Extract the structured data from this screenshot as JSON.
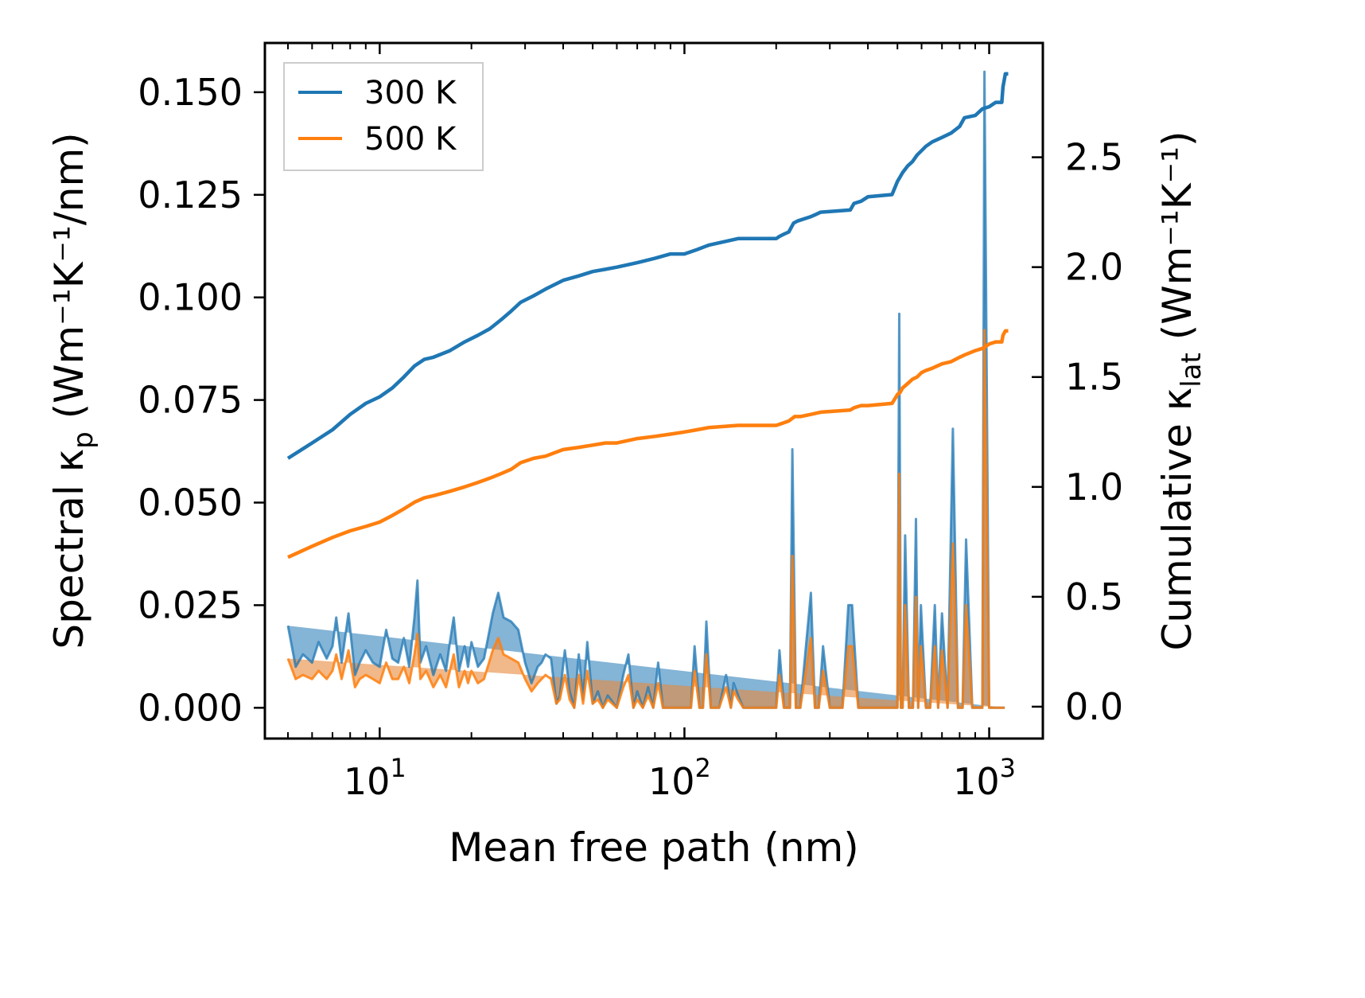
{
  "chart_data": {
    "type": "line",
    "xlabel": "Mean free path (nm)",
    "xscale": "log",
    "xlim": [
      4.2,
      1500
    ],
    "x_ticks": [
      {
        "value": 10,
        "base": "10",
        "exp": "1"
      },
      {
        "value": 100,
        "base": "10",
        "exp": "2"
      },
      {
        "value": 1000,
        "base": "10",
        "exp": "3"
      }
    ],
    "y_left": {
      "label_main": "Spectral κ",
      "label_sub": "p",
      "label_unit": " (Wm⁻¹K⁻¹/nm)",
      "lim": [
        -0.0075,
        0.162
      ],
      "ticks": [
        "0.000",
        "0.025",
        "0.050",
        "0.075",
        "0.100",
        "0.125",
        "0.150"
      ]
    },
    "y_right": {
      "label_main": "Cumulative κ",
      "label_sub": "lat",
      "label_unit": " (Wm⁻¹K⁻¹)",
      "lim": [
        -0.145,
        3.02
      ],
      "ticks": [
        "0.0",
        "0.5",
        "1.0",
        "1.5",
        "2.0",
        "2.5"
      ]
    },
    "legend": {
      "position": "top-left",
      "entries": [
        "300 K",
        "500 K"
      ]
    },
    "colors": {
      "s300": "#1f77b4",
      "s500": "#ff7f0e",
      "fill300": "#1f77b4",
      "fill500": "#e8893b"
    },
    "spectral": {
      "x": [
        5.0,
        5.3,
        5.6,
        6.0,
        6.3,
        6.7,
        7.0,
        7.2,
        7.5,
        7.9,
        8.3,
        8.6,
        9.0,
        9.5,
        10.0,
        10.5,
        11.0,
        11.5,
        12.0,
        12.5,
        13.0,
        13.3,
        13.6,
        14.2,
        15.0,
        15.8,
        16.5,
        17.0,
        17.5,
        18.2,
        19.0,
        19.5,
        20.0,
        21.0,
        22.0,
        23.5,
        24.5,
        25.5,
        27.0,
        28.5,
        30.0,
        31.5,
        33.0,
        34.0,
        35.0,
        36.5,
        38.0,
        39.0,
        40.5,
        42.0,
        43.5,
        45.0,
        46.5,
        48.0,
        50.0,
        52.0,
        54.0,
        56.0,
        60.0,
        63.0,
        65.5,
        68.0,
        70.0,
        73.0,
        76.0,
        79.0,
        82.0,
        85.0,
        89.0,
        95.0,
        105.0,
        108.0,
        112.0,
        115.0,
        118.0,
        122.0,
        130.0,
        137.0,
        142.0,
        145.0,
        150.0,
        156.0,
        160.0,
        170.0,
        200.0,
        205.0,
        212.0,
        218.0,
        222.0,
        226.0,
        232.0,
        240.0,
        260.0,
        268.0,
        276.0,
        285.0,
        300.0,
        330.0,
        345.0,
        355.0,
        372.0,
        385.0,
        397.0,
        450.0,
        500.0,
        507.0,
        513.0,
        520.0,
        530.0,
        545.0,
        562.0,
        575.0,
        585.0,
        597.0,
        620.0,
        640.0,
        663.0,
        680.0,
        700.0,
        730.0,
        760.0,
        790.0,
        805.0,
        818.0,
        840.0,
        880.0,
        920.0,
        935.0,
        950.0,
        965.0,
        1000.0,
        1090.0,
        1100.0,
        1110.0,
        1125.0,
        1140.0,
        1155.0
      ],
      "y300": [
        0.02,
        0.01,
        0.013,
        0.011,
        0.016,
        0.012,
        0.015,
        0.022,
        0.011,
        0.023,
        0.008,
        0.011,
        0.014,
        0.011,
        0.01,
        0.019,
        0.012,
        0.011,
        0.017,
        0.01,
        0.022,
        0.031,
        0.011,
        0.015,
        0.008,
        0.013,
        0.009,
        0.016,
        0.022,
        0.009,
        0.015,
        0.01,
        0.016,
        0.01,
        0.012,
        0.023,
        0.028,
        0.022,
        0.021,
        0.019,
        0.011,
        0.006,
        0.01,
        0.011,
        0.013,
        0.012,
        0.001,
        0.003,
        0.014,
        0.004,
        0.0,
        0.013,
        0.002,
        0.016,
        0.001,
        0.004,
        0.0,
        0.003,
        0.0,
        0.008,
        0.013,
        0.0,
        0.004,
        0.0,
        0.005,
        0.0,
        0.011,
        0.0,
        0.0,
        0.0,
        0.0,
        0.015,
        0.0,
        0.0,
        0.021,
        0.0,
        0.0,
        0.008,
        0.0,
        0.006,
        0.003,
        0.0,
        0.0,
        0.0,
        0.0,
        0.014,
        0.0,
        0.0,
        0.0,
        0.063,
        0.0,
        0.0,
        0.028,
        0.0,
        0.0,
        0.015,
        0.0,
        0.0,
        0.025,
        0.025,
        0.0,
        0.0,
        0.0,
        0.0,
        0.0,
        0.096,
        0.0,
        0.0,
        0.042,
        0.0,
        0.0,
        0.046,
        0.0,
        0.025,
        0.0,
        0.0,
        0.025,
        0.0,
        0.023,
        0.0,
        0.068,
        0.0,
        0.0,
        0.0,
        0.041,
        0.0,
        0.0,
        0.0,
        0.0,
        0.155,
        0.0,
        0.0,
        0.0,
        0.0,
        0.0
      ],
      "y500": [
        0.012,
        0.007,
        0.008,
        0.007,
        0.009,
        0.007,
        0.009,
        0.013,
        0.007,
        0.014,
        0.005,
        0.007,
        0.008,
        0.007,
        0.006,
        0.011,
        0.007,
        0.007,
        0.01,
        0.006,
        0.013,
        0.018,
        0.007,
        0.009,
        0.005,
        0.008,
        0.005,
        0.009,
        0.013,
        0.005,
        0.009,
        0.006,
        0.009,
        0.006,
        0.007,
        0.014,
        0.017,
        0.013,
        0.012,
        0.011,
        0.007,
        0.004,
        0.006,
        0.007,
        0.008,
        0.007,
        0.001,
        0.002,
        0.008,
        0.002,
        0.0,
        0.008,
        0.001,
        0.009,
        0.001,
        0.002,
        0.0,
        0.002,
        0.0,
        0.005,
        0.008,
        0.0,
        0.002,
        0.0,
        0.003,
        0.0,
        0.006,
        0.0,
        0.0,
        0.0,
        0.0,
        0.009,
        0.0,
        0.0,
        0.013,
        0.0,
        0.0,
        0.005,
        0.0,
        0.004,
        0.002,
        0.0,
        0.0,
        0.0,
        0.0,
        0.008,
        0.0,
        0.0,
        0.0,
        0.037,
        0.0,
        0.0,
        0.017,
        0.0,
        0.0,
        0.009,
        0.0,
        0.0,
        0.015,
        0.015,
        0.0,
        0.0,
        0.0,
        0.0,
        0.0,
        0.057,
        0.0,
        0.0,
        0.025,
        0.0,
        0.0,
        0.027,
        0.0,
        0.015,
        0.0,
        0.0,
        0.015,
        0.0,
        0.014,
        0.0,
        0.04,
        0.0,
        0.0,
        0.0,
        0.025,
        0.0,
        0.0,
        0.0,
        0.0,
        0.092,
        0.0,
        0.0,
        0.0,
        0.0,
        0.0
      ]
    },
    "cumulative": {
      "x300": [
        5.0,
        6.0,
        7.0,
        8.0,
        9.0,
        10.0,
        11.0,
        12.0,
        13.0,
        14.0,
        15.0,
        17.0,
        19.0,
        21.0,
        23.0,
        25.0,
        27.0,
        29.0,
        32.0,
        35.0,
        40.0,
        45.0,
        50.0,
        55.0,
        60.0,
        70.0,
        80.0,
        90.0,
        100.0,
        110.0,
        120.0,
        150.0,
        200.0,
        205.0,
        212.0,
        220.0,
        228.0,
        235.0,
        260.0,
        270.0,
        280.0,
        350.0,
        360.0,
        380.0,
        400.0,
        480.0,
        500.0,
        510.0,
        520.0,
        540.0,
        560.0,
        580.0,
        600.0,
        620.0,
        650.0,
        700.0,
        750.0,
        800.0,
        830.0,
        900.0,
        950.0,
        1000.0,
        1050.0,
        1100.0,
        1110.0,
        1130.0,
        1155.0
      ],
      "y300": [
        1.13,
        1.2,
        1.26,
        1.33,
        1.38,
        1.41,
        1.45,
        1.5,
        1.55,
        1.58,
        1.59,
        1.62,
        1.66,
        1.69,
        1.72,
        1.76,
        1.8,
        1.84,
        1.87,
        1.9,
        1.94,
        1.96,
        1.98,
        1.99,
        2.0,
        2.02,
        2.04,
        2.06,
        2.06,
        2.08,
        2.1,
        2.13,
        2.13,
        2.14,
        2.15,
        2.16,
        2.2,
        2.21,
        2.23,
        2.24,
        2.25,
        2.26,
        2.29,
        2.3,
        2.32,
        2.33,
        2.39,
        2.41,
        2.43,
        2.46,
        2.48,
        2.51,
        2.53,
        2.55,
        2.57,
        2.59,
        2.61,
        2.64,
        2.68,
        2.69,
        2.72,
        2.73,
        2.75,
        2.75,
        2.82,
        2.88,
        2.88
      ],
      "x500": [
        5.0,
        6.0,
        7.0,
        8.0,
        9.0,
        10.0,
        11.0,
        12.0,
        13.0,
        14.0,
        15.0,
        17.0,
        19.0,
        21.0,
        23.0,
        25.0,
        27.0,
        29.0,
        32.0,
        35.0,
        40.0,
        45.0,
        50.0,
        55.0,
        60.0,
        70.0,
        80.0,
        90.0,
        100.0,
        110.0,
        120.0,
        150.0,
        200.0,
        210.0,
        220.0,
        230.0,
        240.0,
        260.0,
        280.0,
        350.0,
        360.0,
        380.0,
        400.0,
        480.0,
        500.0,
        510.0,
        520.0,
        540.0,
        560.0,
        580.0,
        600.0,
        620.0,
        650.0,
        700.0,
        750.0,
        800.0,
        830.0,
        900.0,
        950.0,
        1000.0,
        1050.0,
        1100.0,
        1110.0,
        1130.0,
        1155.0
      ],
      "y500": [
        0.68,
        0.73,
        0.77,
        0.8,
        0.82,
        0.84,
        0.87,
        0.9,
        0.93,
        0.95,
        0.96,
        0.98,
        1.0,
        1.02,
        1.04,
        1.06,
        1.08,
        1.11,
        1.13,
        1.14,
        1.17,
        1.18,
        1.19,
        1.2,
        1.2,
        1.22,
        1.23,
        1.24,
        1.25,
        1.26,
        1.27,
        1.28,
        1.28,
        1.29,
        1.3,
        1.32,
        1.32,
        1.33,
        1.34,
        1.35,
        1.36,
        1.37,
        1.37,
        1.38,
        1.42,
        1.43,
        1.45,
        1.47,
        1.49,
        1.5,
        1.52,
        1.53,
        1.54,
        1.56,
        1.57,
        1.59,
        1.6,
        1.62,
        1.63,
        1.65,
        1.66,
        1.66,
        1.69,
        1.71,
        1.71
      ]
    }
  }
}
